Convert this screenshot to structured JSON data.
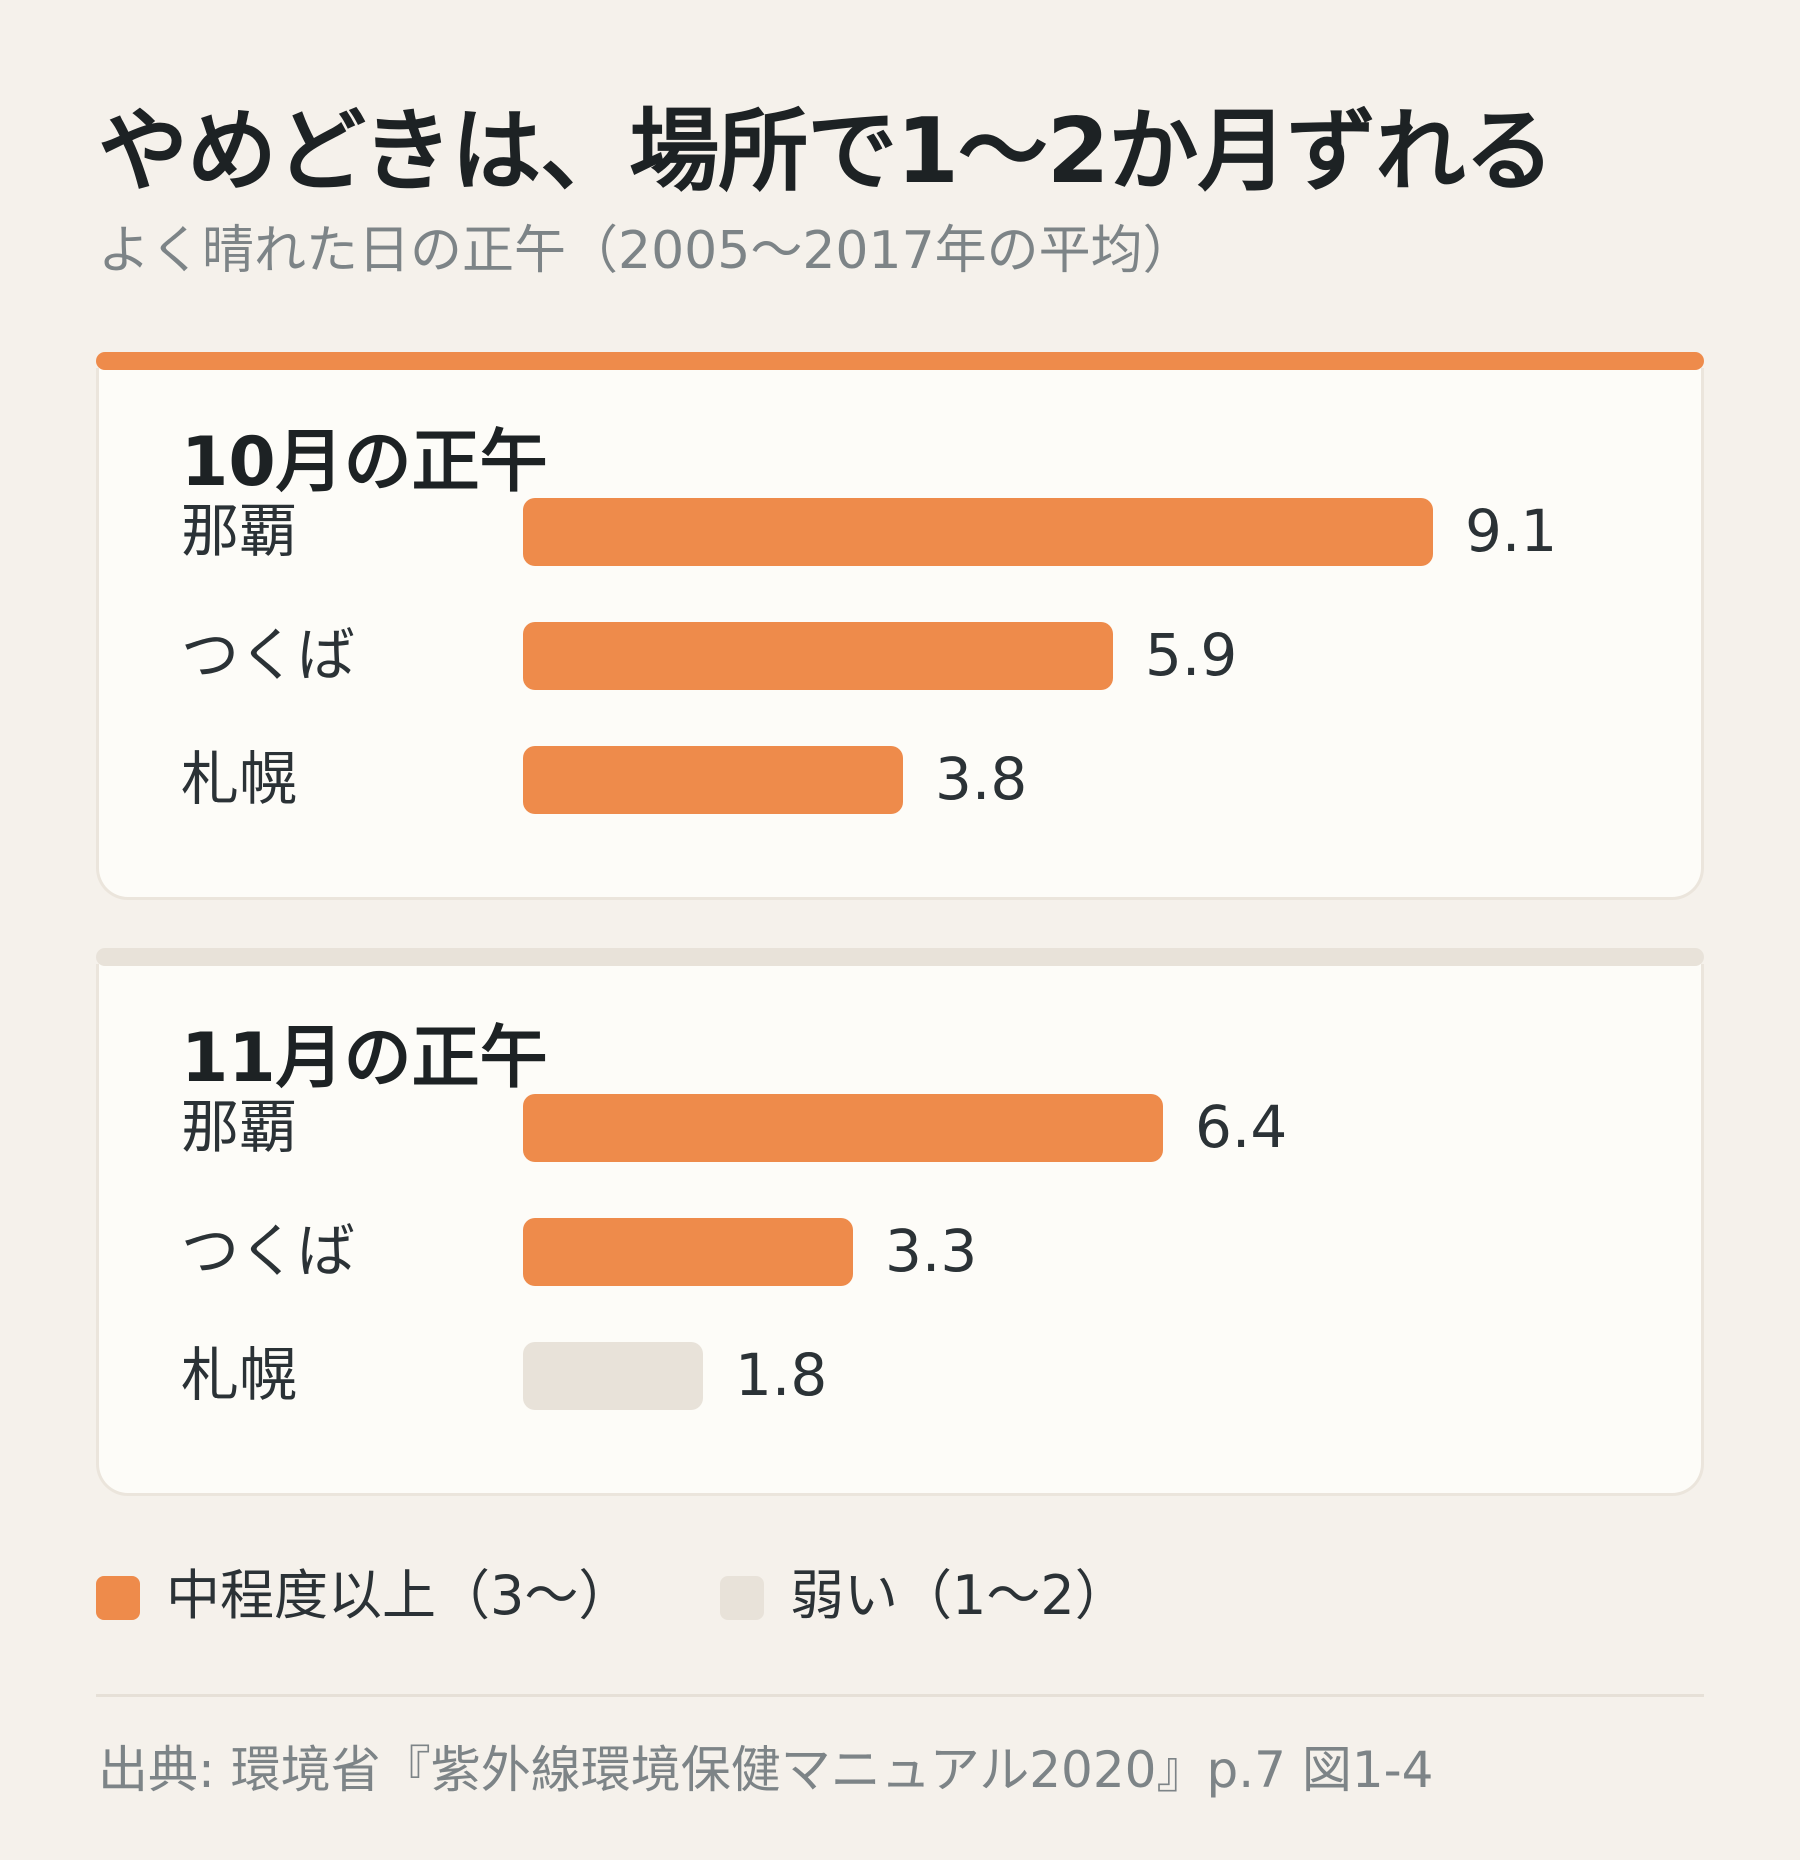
{
  "title": "やめどきは、場所で1〜2か月ずれる",
  "subtitle": "よく晴れた日の正午（2005〜2017年の平均）",
  "chart_data": [
    {
      "type": "bar",
      "orientation": "horizontal",
      "title": "10月の正午",
      "categories": [
        "那覇",
        "つくば",
        "札幌"
      ],
      "values": [
        9.1,
        5.9,
        3.8
      ],
      "value_labels": [
        "9.1",
        "5.9",
        "3.8"
      ],
      "levels": [
        "中程度以上（3〜）",
        "中程度以上（3〜）",
        "中程度以上（3〜）"
      ],
      "accent": "orange"
    },
    {
      "type": "bar",
      "orientation": "horizontal",
      "title": "11月の正午",
      "categories": [
        "那覇",
        "つくば",
        "札幌"
      ],
      "values": [
        6.4,
        3.3,
        1.8
      ],
      "value_labels": [
        "6.4",
        "3.3",
        "1.8"
      ],
      "levels": [
        "中程度以上（3〜）",
        "中程度以上（3〜）",
        "弱い（1〜2）"
      ],
      "accent": "beige"
    }
  ],
  "legend": [
    {
      "label": "中程度以上（3〜）",
      "color": "#ee8b4b"
    },
    {
      "label": "弱い（1〜2）",
      "color": "#e8e2d9"
    }
  ],
  "colors": {
    "orange": "#ee8b4b",
    "beige": "#e8e2d9"
  },
  "source": "出典: 環境省『紫外線環境保健マニュアル2020』p.7 図1-4"
}
